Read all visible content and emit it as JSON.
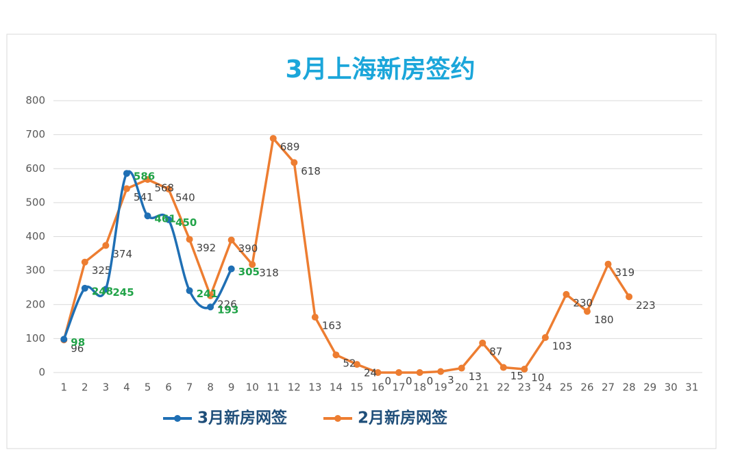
{
  "chart_data": {
    "type": "line",
    "title": "3月上海新房签约",
    "categories": [
      "1",
      "2",
      "3",
      "4",
      "5",
      "6",
      "7",
      "8",
      "9",
      "10",
      "11",
      "12",
      "13",
      "14",
      "15",
      "16",
      "17",
      "18",
      "19",
      "20",
      "21",
      "22",
      "23",
      "24",
      "25",
      "26",
      "27",
      "28",
      "29",
      "30",
      "31"
    ],
    "series": [
      {
        "name": "3月新房网签",
        "color": "#1f6fb4",
        "smooth": true,
        "values": [
          98,
          248,
          245,
          586,
          461,
          450,
          241,
          193,
          305,
          null,
          null,
          null,
          null,
          null,
          null,
          null,
          null,
          null,
          null,
          null,
          null,
          null,
          null,
          null,
          null,
          null,
          null,
          null,
          null,
          null,
          null
        ]
      },
      {
        "name": "2月新房网签",
        "color": "#ed7d31",
        "smooth": false,
        "values": [
          96,
          325,
          374,
          541,
          568,
          540,
          392,
          226,
          390,
          318,
          689,
          618,
          163,
          52,
          24,
          0,
          0,
          0,
          3,
          13,
          87,
          15,
          10,
          103,
          230,
          180,
          319,
          223,
          null,
          null,
          null
        ]
      }
    ],
    "ylim": [
      0,
      800
    ],
    "yticks": [
      0,
      100,
      200,
      300,
      400,
      500,
      600,
      700,
      800
    ],
    "grid": true,
    "legend": "bottom"
  }
}
